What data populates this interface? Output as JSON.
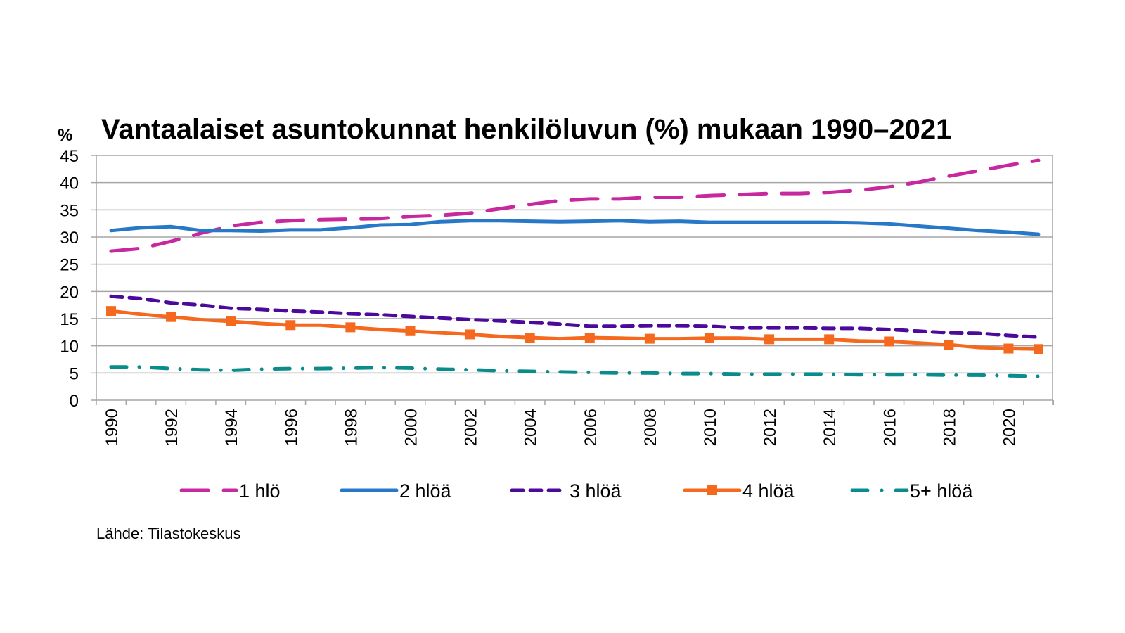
{
  "chart_data": {
    "type": "line",
    "title": "Vantaalaiset asuntokunnat henkilöluvun (%) mukaan 1990–2021",
    "ylabel": "%",
    "xlabel": "",
    "ylim": [
      0,
      45
    ],
    "yticks": [
      "0",
      "5",
      "10",
      "15",
      "20",
      "25",
      "30",
      "35",
      "40",
      "45"
    ],
    "ytick_values": [
      0,
      5,
      10,
      15,
      20,
      25,
      30,
      35,
      40,
      45
    ],
    "x": [
      1990,
      1991,
      1992,
      1993,
      1994,
      1995,
      1996,
      1997,
      1998,
      1999,
      2000,
      2001,
      2002,
      2003,
      2004,
      2005,
      2006,
      2007,
      2008,
      2009,
      2010,
      2011,
      2012,
      2013,
      2014,
      2015,
      2016,
      2017,
      2018,
      2019,
      2020,
      2021
    ],
    "xtick_labels": [
      "1990",
      "1992",
      "1994",
      "1996",
      "1998",
      "2000",
      "2002",
      "2004",
      "2006",
      "2008",
      "2010",
      "2012",
      "2014",
      "2016",
      "2018",
      "2020"
    ],
    "grid": true,
    "legend_position": "bottom",
    "series": [
      {
        "name": "1 hlö",
        "color": "#C8289E",
        "style": "long-dash",
        "values": [
          27.4,
          27.9,
          29.2,
          30.7,
          32.0,
          32.7,
          33.0,
          33.2,
          33.3,
          33.4,
          33.8,
          34.0,
          34.4,
          35.2,
          36.0,
          36.7,
          37.0,
          37.0,
          37.3,
          37.3,
          37.6,
          37.8,
          38.0,
          38.0,
          38.2,
          38.6,
          39.2,
          40.1,
          41.2,
          42.2,
          43.2,
          44.1
        ]
      },
      {
        "name": "2 hlöä",
        "color": "#2878C8",
        "style": "solid",
        "values": [
          31.2,
          31.7,
          31.9,
          31.2,
          31.2,
          31.1,
          31.3,
          31.3,
          31.7,
          32.2,
          32.3,
          32.8,
          33.0,
          33.0,
          32.9,
          32.8,
          32.9,
          33.0,
          32.8,
          32.9,
          32.7,
          32.7,
          32.7,
          32.7,
          32.7,
          32.6,
          32.4,
          32.0,
          31.6,
          31.2,
          30.9,
          30.5
        ]
      },
      {
        "name": "3 hlöä",
        "color": "#4B0A9B",
        "style": "dash",
        "values": [
          19.1,
          18.7,
          17.9,
          17.5,
          16.9,
          16.7,
          16.4,
          16.2,
          15.9,
          15.7,
          15.4,
          15.1,
          14.8,
          14.6,
          14.3,
          14.0,
          13.6,
          13.6,
          13.7,
          13.7,
          13.6,
          13.3,
          13.3,
          13.3,
          13.2,
          13.2,
          13.0,
          12.7,
          12.4,
          12.3,
          11.9,
          11.6
        ]
      },
      {
        "name": "4 hlöä",
        "color": "#F5691E",
        "style": "solid-square-markers",
        "values": [
          16.4,
          15.8,
          15.3,
          14.8,
          14.5,
          14.1,
          13.8,
          13.8,
          13.4,
          13.0,
          12.7,
          12.4,
          12.1,
          11.7,
          11.5,
          11.3,
          11.5,
          11.4,
          11.3,
          11.3,
          11.4,
          11.4,
          11.2,
          11.2,
          11.2,
          10.9,
          10.8,
          10.5,
          10.2,
          9.7,
          9.5,
          9.4
        ]
      },
      {
        "name": "5+ hlöä",
        "color": "#0A8C8C",
        "style": "dash-dot",
        "values": [
          6.1,
          6.1,
          5.8,
          5.6,
          5.5,
          5.7,
          5.8,
          5.8,
          5.9,
          6.0,
          5.9,
          5.7,
          5.6,
          5.4,
          5.3,
          5.2,
          5.1,
          5.0,
          5.0,
          4.9,
          4.9,
          4.8,
          4.8,
          4.8,
          4.8,
          4.7,
          4.7,
          4.7,
          4.6,
          4.6,
          4.5,
          4.4
        ]
      }
    ],
    "source": "Lähde: Tilastokeskus"
  }
}
